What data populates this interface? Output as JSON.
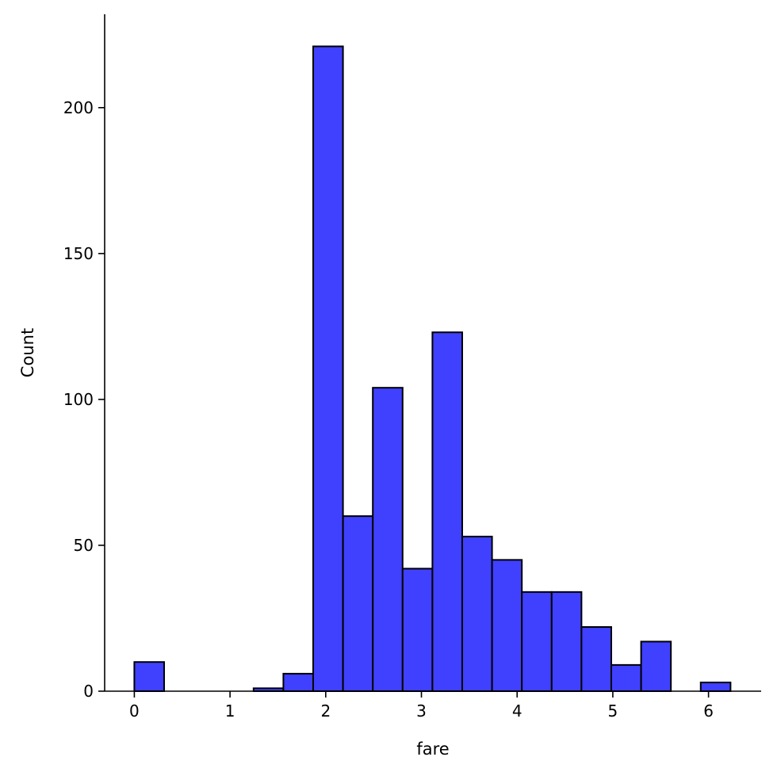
{
  "chart_data": {
    "type": "bar",
    "subtype": "histogram",
    "xlabel": "fare",
    "ylabel": "Count",
    "xlim": [
      -0.31,
      6.55
    ],
    "ylim": [
      0,
      232
    ],
    "bin_width": 0.3115,
    "bins": [
      {
        "start": 0.0,
        "count": 10
      },
      {
        "start": 0.3115,
        "count": 0
      },
      {
        "start": 0.623,
        "count": 0
      },
      {
        "start": 0.9345,
        "count": 0
      },
      {
        "start": 1.246,
        "count": 1
      },
      {
        "start": 1.5575,
        "count": 6
      },
      {
        "start": 1.869,
        "count": 221
      },
      {
        "start": 2.1805,
        "count": 60
      },
      {
        "start": 2.492,
        "count": 104
      },
      {
        "start": 2.8035,
        "count": 42
      },
      {
        "start": 3.115,
        "count": 123
      },
      {
        "start": 3.4265,
        "count": 53
      },
      {
        "start": 3.738,
        "count": 45
      },
      {
        "start": 4.0495,
        "count": 34
      },
      {
        "start": 4.361,
        "count": 34
      },
      {
        "start": 4.6725,
        "count": 22
      },
      {
        "start": 4.984,
        "count": 9
      },
      {
        "start": 5.2955,
        "count": 17
      },
      {
        "start": 5.607,
        "count": 0
      },
      {
        "start": 5.9185,
        "count": 3
      }
    ],
    "x_ticks": [
      0,
      1,
      2,
      3,
      4,
      5,
      6
    ],
    "y_ticks": [
      0,
      50,
      100,
      150,
      200
    ],
    "bar_color": "#4040ff",
    "edge_color": "#000000",
    "grid": false,
    "legend": "none"
  }
}
